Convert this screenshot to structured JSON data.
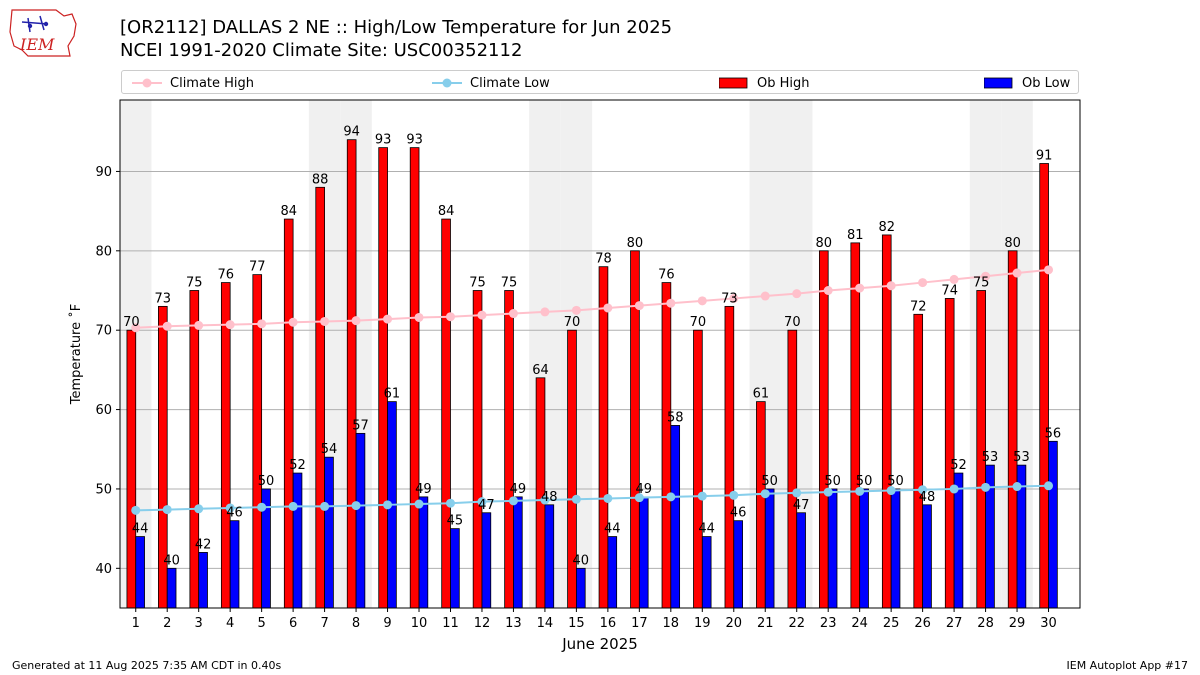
{
  "logo": {
    "text": "IEM",
    "color": "#cc2222"
  },
  "title": {
    "line1": "[OR2112] DALLAS 2 NE :: High/Low Temperature for Jun 2025",
    "line2": "NCEI 1991-2020 Climate Site: USC00352112"
  },
  "footer": {
    "left": "Generated at 11 Aug 2025 7:35 AM CDT in 0.40s",
    "right": "IEM Autoplot App #17"
  },
  "colors": {
    "ob_high": "#ff0000",
    "ob_low": "#0000ff",
    "climate_high": "#ffc0cb",
    "climate_low": "#87ceeb",
    "weekend_shade": "#f0f0f0"
  },
  "chart_data": {
    "type": "bar",
    "xlabel": "June 2025",
    "ylabel": "Temperature ˚F",
    "ylim": [
      35,
      99
    ],
    "yticks": [
      40,
      50,
      60,
      70,
      80,
      90
    ],
    "grid": "horizontal",
    "legend_placement": "top",
    "categories": [
      "1",
      "2",
      "3",
      "4",
      "5",
      "6",
      "7",
      "8",
      "9",
      "10",
      "11",
      "12",
      "13",
      "14",
      "15",
      "16",
      "17",
      "18",
      "19",
      "20",
      "21",
      "22",
      "23",
      "24",
      "25",
      "26",
      "27",
      "28",
      "29",
      "30"
    ],
    "shaded_days": [
      1,
      7,
      8,
      14,
      15,
      21,
      22,
      28,
      29
    ],
    "series": [
      {
        "name": "Ob High",
        "kind": "bar",
        "values": [
          70,
          73,
          75,
          76,
          77,
          84,
          88,
          94,
          93,
          93,
          84,
          75,
          75,
          64,
          70,
          78,
          80,
          76,
          70,
          73,
          61,
          70,
          80,
          81,
          82,
          72,
          74,
          75,
          80,
          91
        ]
      },
      {
        "name": "Ob Low",
        "kind": "bar",
        "values": [
          44,
          40,
          42,
          46,
          50,
          52,
          54,
          57,
          61,
          49,
          45,
          47,
          49,
          48,
          40,
          44,
          49,
          58,
          44,
          46,
          50,
          47,
          50,
          50,
          50,
          48,
          52,
          53,
          53,
          56
        ]
      },
      {
        "name": "Climate High",
        "kind": "line",
        "values": [
          70.3,
          70.5,
          70.6,
          70.7,
          70.8,
          71.0,
          71.1,
          71.2,
          71.4,
          71.6,
          71.7,
          71.9,
          72.1,
          72.3,
          72.5,
          72.8,
          73.1,
          73.4,
          73.7,
          74.0,
          74.3,
          74.6,
          75.0,
          75.3,
          75.6,
          76.0,
          76.4,
          76.8,
          77.2,
          77.6
        ]
      },
      {
        "name": "Climate Low",
        "kind": "line",
        "values": [
          47.3,
          47.4,
          47.5,
          47.6,
          47.7,
          47.8,
          47.8,
          47.9,
          48.0,
          48.1,
          48.2,
          48.4,
          48.5,
          48.6,
          48.7,
          48.8,
          48.9,
          49.0,
          49.1,
          49.2,
          49.4,
          49.5,
          49.6,
          49.7,
          49.8,
          49.9,
          50.0,
          50.2,
          50.3,
          50.4
        ]
      }
    ]
  }
}
